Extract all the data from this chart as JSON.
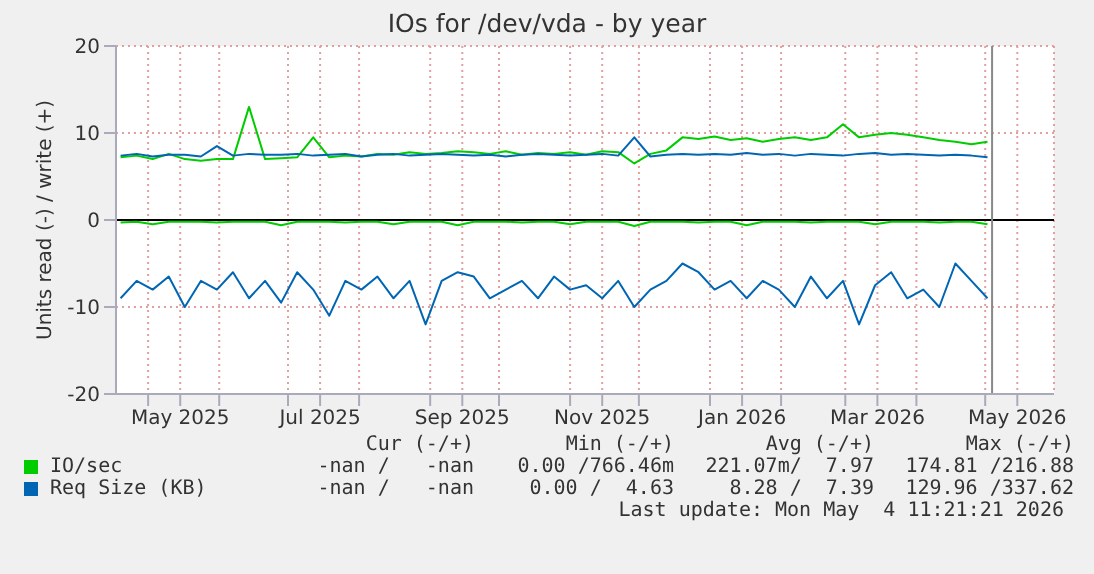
{
  "chart_data": {
    "type": "line",
    "title": "IOs for /dev/vda - by year",
    "ylabel": "Units read (-) / write (+)",
    "x": [
      "2025-04-19",
      "2025-04-26",
      "2025-05-03",
      "2025-05-10",
      "2025-05-17",
      "2025-05-24",
      "2025-05-31",
      "2025-06-07",
      "2025-06-14",
      "2025-06-21",
      "2025-06-28",
      "2025-07-05",
      "2025-07-12",
      "2025-07-19",
      "2025-07-26",
      "2025-08-02",
      "2025-08-09",
      "2025-08-16",
      "2025-08-23",
      "2025-08-30",
      "2025-09-06",
      "2025-09-13",
      "2025-09-20",
      "2025-09-27",
      "2025-10-04",
      "2025-10-11",
      "2025-10-18",
      "2025-10-25",
      "2025-11-01",
      "2025-11-08",
      "2025-11-15",
      "2025-11-22",
      "2025-11-29",
      "2025-12-06",
      "2025-12-13",
      "2025-12-20",
      "2025-12-27",
      "2026-01-03",
      "2026-01-10",
      "2026-01-17",
      "2026-01-24",
      "2026-01-31",
      "2026-02-07",
      "2026-02-14",
      "2026-02-21",
      "2026-02-28",
      "2026-03-07",
      "2026-03-14",
      "2026-03-21",
      "2026-03-28",
      "2026-04-04",
      "2026-04-11",
      "2026-04-18",
      "2026-04-25",
      "2026-05-02"
    ],
    "series": [
      {
        "name": "IO/sec",
        "color": "#00cc00",
        "values": [
          7.2,
          7.4,
          7.0,
          7.6,
          7.0,
          6.8,
          7.0,
          7.0,
          13.0,
          7.0,
          7.1,
          7.2,
          9.5,
          7.2,
          7.4,
          7.3,
          7.6,
          7.5,
          7.8,
          7.6,
          7.7,
          7.9,
          7.8,
          7.6,
          7.9,
          7.5,
          7.7,
          7.6,
          7.8,
          7.5,
          7.9,
          7.8,
          6.5,
          7.6,
          8.0,
          9.5,
          9.3,
          9.6,
          9.2,
          9.4,
          9.0,
          9.3,
          9.5,
          9.2,
          9.5,
          11.0,
          9.5,
          9.8,
          10.0,
          9.8,
          9.5,
          9.2,
          9.0,
          8.7,
          9.0
        ]
      },
      {
        "name": "Req Size (KB)",
        "color": "#0066b3",
        "values": [
          7.4,
          7.6,
          7.3,
          7.5,
          7.5,
          7.3,
          8.5,
          7.4,
          7.6,
          7.5,
          7.5,
          7.6,
          7.4,
          7.5,
          7.6,
          7.3,
          7.5,
          7.6,
          7.4,
          7.5,
          7.6,
          7.5,
          7.4,
          7.5,
          7.3,
          7.5,
          7.6,
          7.5,
          7.4,
          7.5,
          7.6,
          7.4,
          9.5,
          7.3,
          7.5,
          7.6,
          7.5,
          7.6,
          7.5,
          7.7,
          7.5,
          7.6,
          7.4,
          7.6,
          7.5,
          7.4,
          7.6,
          7.7,
          7.5,
          7.6,
          7.5,
          7.4,
          7.5,
          7.4,
          7.2
        ]
      },
      {
        "color": "#00cc00",
        "values": [
          -0.3,
          -0.2,
          -0.5,
          -0.2,
          -0.2,
          -0.2,
          -0.3,
          -0.2,
          -0.2,
          -0.2,
          -0.6,
          -0.2,
          -0.2,
          -0.2,
          -0.3,
          -0.2,
          -0.2,
          -0.5,
          -0.2,
          -0.2,
          -0.2,
          -0.6,
          -0.2,
          -0.2,
          -0.2,
          -0.3,
          -0.2,
          -0.2,
          -0.5,
          -0.2,
          -0.2,
          -0.2,
          -0.7,
          -0.2,
          -0.2,
          -0.2,
          -0.3,
          -0.2,
          -0.2,
          -0.6,
          -0.2,
          -0.2,
          -0.2,
          -0.3,
          -0.2,
          -0.2,
          -0.2,
          -0.5,
          -0.2,
          -0.2,
          -0.2,
          -0.3,
          -0.2,
          -0.2,
          -0.5
        ]
      },
      {
        "color": "#0066b3",
        "values": [
          -9,
          -7,
          -8,
          -6.5,
          -10,
          -7,
          -8,
          -6,
          -9,
          -7,
          -9.5,
          -6,
          -8,
          -11,
          -7,
          -8,
          -6.5,
          -9,
          -7,
          -12,
          -7,
          -6,
          -6.5,
          -9,
          -8,
          -7,
          -9,
          -6.5,
          -8,
          -7.5,
          -9,
          -7,
          -10,
          -8,
          -7,
          -5,
          -6,
          -8,
          -7,
          -9,
          -7,
          -8,
          -10,
          -6.5,
          -9,
          -7,
          -12,
          -7.5,
          -6,
          -9,
          -8,
          -10,
          -5,
          -7,
          -9
        ]
      }
    ],
    "xlim": [
      "2025-04-17",
      "2026-05-31"
    ],
    "xticks": [
      {
        "value": "2025-05-01",
        "label": null
      },
      {
        "value": "2025-05-15",
        "label": "May 2025"
      },
      {
        "value": "2025-06-01",
        "label": null
      },
      {
        "value": "2025-07-01",
        "label": null
      },
      {
        "value": "2025-07-15",
        "label": "Jul 2025"
      },
      {
        "value": "2025-08-01",
        "label": null
      },
      {
        "value": "2025-09-01",
        "label": null
      },
      {
        "value": "2025-09-15",
        "label": "Sep 2025"
      },
      {
        "value": "2025-10-01",
        "label": null
      },
      {
        "value": "2025-11-01",
        "label": null
      },
      {
        "value": "2025-11-15",
        "label": "Nov 2025"
      },
      {
        "value": "2025-12-01",
        "label": null
      },
      {
        "value": "2026-01-01",
        "label": null
      },
      {
        "value": "2026-01-15",
        "label": "Jan 2026"
      },
      {
        "value": "2026-02-01",
        "label": null
      },
      {
        "value": "2026-03-01",
        "label": null
      },
      {
        "value": "2026-03-15",
        "label": "Mar 2026"
      },
      {
        "value": "2026-04-01",
        "label": null
      },
      {
        "value": "2026-05-01",
        "label": null
      },
      {
        "value": "2026-05-15",
        "label": "May 2026"
      }
    ],
    "ylim": [
      -20,
      20
    ],
    "yticks": [
      -20,
      -10,
      0,
      10,
      20
    ],
    "grid": true,
    "legend": "bottom",
    "marker": "none",
    "line_style": "solid",
    "ref_lines": [
      {
        "axis": "y",
        "value": 0,
        "color": "#000000"
      },
      {
        "axis": "x",
        "value": "2026-05-04",
        "color": "#888888"
      }
    ],
    "annotations": [
      "Cur (-/+)",
      "Min (-/+)",
      "Avg (-/+)",
      "Max (-/+)",
      "-nan /   -nan",
      "0.00 /766.46m",
      "221.07m/  7.97",
      "174.81 /216.88",
      "-nan /   -nan",
      "0.00 /  4.63",
      "8.28 /  7.39",
      "129.96 /337.62",
      "Last update: Mon May  4 11:21:21 2026"
    ]
  }
}
